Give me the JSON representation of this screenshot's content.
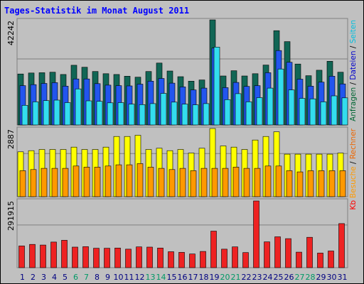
{
  "chart_data": {
    "type": "bar",
    "title": "Tages-Statistik im Monat August 2011",
    "days": [
      "1",
      "2",
      "3",
      "4",
      "5",
      "6",
      "7",
      "8",
      "9",
      "10",
      "11",
      "12",
      "13",
      "14",
      "15",
      "16",
      "17",
      "18",
      "19",
      "20",
      "21",
      "22",
      "23",
      "24",
      "25",
      "26",
      "27",
      "28",
      "29",
      "30",
      "31"
    ],
    "weekend_days": [
      "6",
      "7",
      "13",
      "14",
      "20",
      "21",
      "27",
      "28"
    ],
    "panels": [
      {
        "max_label": "42242",
        "ymax": 42242,
        "right_labels": [
          {
            "text": "Anfragen",
            "color": "#006633"
          },
          {
            "text": " / ",
            "color": "#000000"
          },
          {
            "text": "Dateien",
            "color": "#0000cc"
          },
          {
            "text": " / ",
            "color": "#000000"
          },
          {
            "text": "Seiten",
            "color": "#00bfdf"
          }
        ],
        "series": [
          {
            "name": "Anfragen",
            "color": "#116655",
            "values": [
              20500,
              20900,
              21000,
              21200,
              20300,
              24000,
              23200,
              21500,
              20600,
              20300,
              19600,
              19200,
              21500,
              24900,
              21700,
              19400,
              17600,
              18100,
              42242,
              19700,
              21800,
              19700,
              20600,
              24100,
              37900,
              33500,
              24500,
              19800,
              22000,
              25600,
              21200
            ]
          },
          {
            "name": "Dateien",
            "color": "#2255ee",
            "values": [
              15800,
              16200,
              16700,
              17000,
              15600,
              18500,
              18500,
              16600,
              16000,
              15800,
              15700,
              16400,
              17600,
              18700,
              16800,
              15300,
              14100,
              14800,
              30900,
              15000,
              17100,
              15500,
              15800,
              21000,
              29900,
              25200,
              18400,
              15600,
              17200,
              19600,
              16500
            ]
          },
          {
            "name": "Seiten",
            "color": "#33ddee",
            "values": [
              7900,
              9300,
              9800,
              10000,
              9000,
              14500,
              9700,
              9500,
              8900,
              9000,
              8400,
              8200,
              8600,
              12700,
              9200,
              8400,
              8100,
              8600,
              31300,
              10200,
              12600,
              9300,
              11000,
              14800,
              22500,
              14100,
              10700,
              10500,
              9300,
              11700,
              10900
            ]
          }
        ]
      },
      {
        "max_label": "2887",
        "ymax": 2887,
        "right_labels": [
          {
            "text": "Besuche",
            "color": "#ff9900"
          },
          {
            "text": " / ",
            "color": "#000000"
          },
          {
            "text": "Rechner",
            "color": "#ee6600"
          }
        ],
        "series": [
          {
            "name": "Besuche",
            "color": "#ffff00",
            "values": [
              1900,
              1950,
              2000,
              2000,
              2000,
              2100,
              2000,
              2000,
              2100,
              2550,
              2550,
              2600,
              2000,
              2050,
              1950,
              2000,
              1850,
              2050,
              2887,
              2150,
              2100,
              2000,
              2400,
              2550,
              2750,
              1800,
              1800,
              1800,
              1800,
              1800,
              1850
            ]
          },
          {
            "name": "Rechner",
            "color": "#ff9900",
            "values": [
              1100,
              1150,
              1200,
              1200,
              1200,
              1300,
              1250,
              1250,
              1300,
              1350,
              1350,
              1400,
              1250,
              1200,
              1150,
              1200,
              1100,
              1200,
              1200,
              1200,
              1250,
              1200,
              1200,
              1300,
              1300,
              1100,
              1050,
              1100,
              1100,
              1100,
              1100
            ]
          }
        ]
      },
      {
        "max_label": "291915",
        "ymax": 291915,
        "right_labels": [
          {
            "text": "Kb",
            "color": "#ff0000"
          }
        ],
        "series": [
          {
            "name": "Kb",
            "color": "#ee2222",
            "values": [
              95000,
              102000,
              99000,
              112000,
              120000,
              90000,
              92000,
              85000,
              85000,
              86000,
              81000,
              91000,
              90000,
              86000,
              70000,
              67000,
              60000,
              71000,
              160000,
              81000,
              91000,
              66000,
              291915,
              113000,
              135000,
              127000,
              68000,
              133000,
              64000,
              73000,
              193000
            ]
          }
        ]
      }
    ]
  }
}
